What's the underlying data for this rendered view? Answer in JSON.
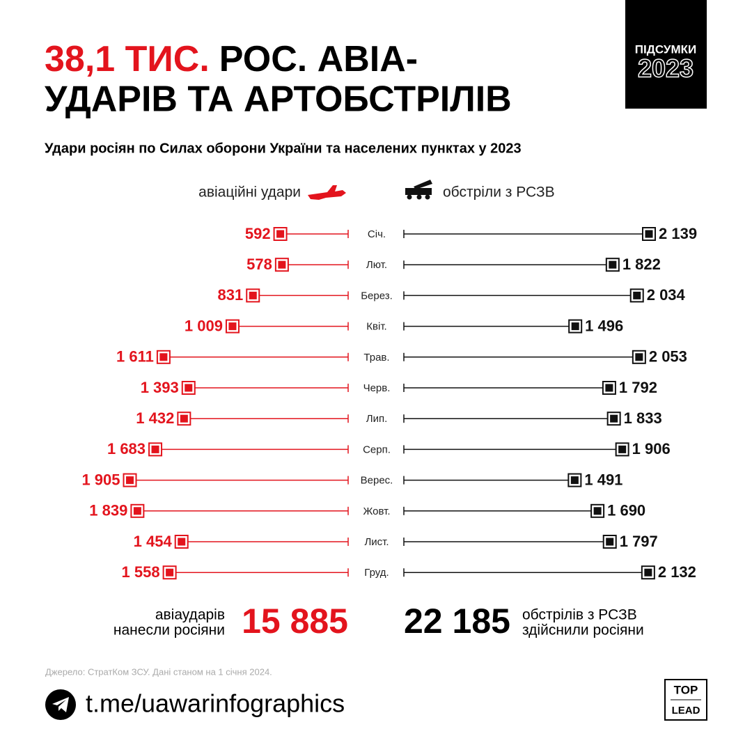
{
  "chart_data": {
    "type": "diverging-lollipop",
    "title_highlight": "38,1 ТИС.",
    "title_line1": "РОС. АВІА-",
    "title_line2": "УДАРІВ ТА АРТОБСТРІЛІВ",
    "badge": {
      "top": "ПІДСУМКИ",
      "year": "2023"
    },
    "subtitle": "Удари росіян по Силах оборони України та населених пунктах у 2023",
    "categories": [
      "Січ.",
      "Лют.",
      "Берез.",
      "Квіт.",
      "Трав.",
      "Черв.",
      "Лип.",
      "Серп.",
      "Верес.",
      "Жовт.",
      "Лист.",
      "Груд."
    ],
    "series": [
      {
        "name": "авіаційні удари",
        "color": "#e3141d",
        "side": "left",
        "values": [
          592,
          578,
          831,
          1009,
          1611,
          1393,
          1432,
          1683,
          1905,
          1839,
          1454,
          1558
        ],
        "value_labels": [
          "592",
          "578",
          "831",
          "1 009",
          "1 611",
          "1 393",
          "1 432",
          "1 683",
          "1 905",
          "1 839",
          "1 454",
          "1 558"
        ]
      },
      {
        "name": "обстріли з РСЗВ",
        "color": "#111111",
        "side": "right",
        "values": [
          2139,
          1822,
          2034,
          1496,
          2053,
          1792,
          1833,
          1906,
          1491,
          1690,
          1797,
          2132
        ],
        "value_labels": [
          "2 139",
          "1 822",
          "2 034",
          "1 496",
          "2 053",
          "1 792",
          "1 833",
          "1 906",
          "1 491",
          "1 690",
          "1 797",
          "2 132"
        ]
      }
    ],
    "totals": [
      {
        "value": 15885,
        "label": "15 885",
        "caption_line1": "авіаударів",
        "caption_line2": "нанесли росіяни"
      },
      {
        "value": 22185,
        "label": "22 185",
        "caption_line1": "обстрілів з РСЗВ",
        "caption_line2": "здійснили росіяни"
      }
    ],
    "source": "Джерело: СтратКом ЗСУ. Дані станом на 1 січня 2024.",
    "link": "t.me/uawarinfographics",
    "logo": {
      "top": "TOP",
      "bottom": "LEAD"
    }
  }
}
